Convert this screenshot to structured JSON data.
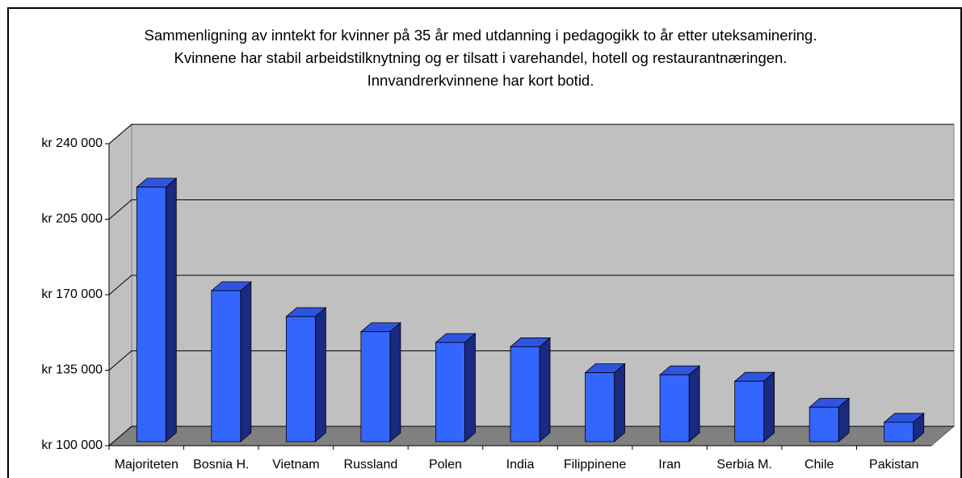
{
  "chart_data": {
    "type": "bar3d",
    "title": "Sammenligning av inntekt for kvinner på 35 år med utdanning i pedagogikk to år etter uteksaminering. Kvinnene har stabil arbeidstilknytning og er tilsatt i varehandel, hotell og restaurantnæringen. Innvandrerkvinnene har kort botid.",
    "categories": [
      "Majoriteten",
      "Bosnia H.",
      "Vietnam",
      "Russland",
      "Polen",
      "India",
      "Filippinene",
      "Iran",
      "Serbia M.",
      "Chile",
      "Pakistan"
    ],
    "values": [
      218000,
      170000,
      158000,
      151000,
      146000,
      144000,
      132000,
      131000,
      128000,
      116000,
      109000
    ],
    "color": "#3366ff",
    "ylim": [
      100000,
      240000
    ],
    "yticks": [
      {
        "value": 100000,
        "label": "kr 100 000"
      },
      {
        "value": 135000,
        "label": "kr 135 000"
      },
      {
        "value": 170000,
        "label": "kr 170 000"
      },
      {
        "value": 205000,
        "label": "kr 205 000"
      },
      {
        "value": 240000,
        "label": "kr 240 000"
      }
    ],
    "grid": true
  }
}
